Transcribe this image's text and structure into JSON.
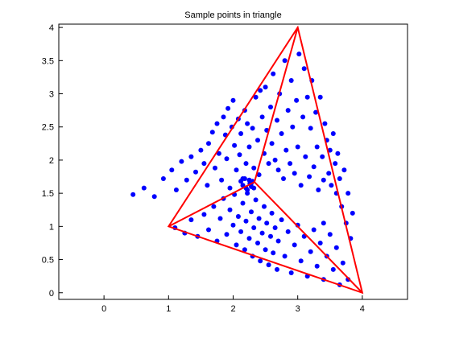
{
  "chart_data": {
    "type": "scatter",
    "title": "Sample points in triangle",
    "xlabel": "",
    "ylabel": "",
    "xlim": [
      -0.7,
      4.7
    ],
    "ylim": [
      -0.1,
      4.05
    ],
    "xticks": [
      0,
      1,
      2,
      3,
      4
    ],
    "yticks": [
      0,
      0.5,
      1,
      1.5,
      2,
      2.5,
      3,
      3.5,
      4
    ],
    "xtick_labels": [
      "0",
      "1",
      "2",
      "3",
      "4"
    ],
    "ytick_labels": [
      "0",
      "0.5",
      "1",
      "1.5",
      "2",
      "2.5",
      "3",
      "3.5",
      "4"
    ],
    "grid": false,
    "triangle": {
      "vertices": [
        [
          1,
          1
        ],
        [
          4,
          0
        ],
        [
          3,
          4
        ]
      ],
      "centroid": [
        2.33,
        1.67
      ],
      "color": "#ff0000"
    },
    "point_color": "#0000ff",
    "points": [
      [
        0.45,
        1.48
      ],
      [
        0.62,
        1.58
      ],
      [
        0.78,
        1.45
      ],
      [
        0.92,
        1.72
      ],
      [
        1.05,
        1.85
      ],
      [
        1.12,
        1.55
      ],
      [
        1.2,
        1.98
      ],
      [
        1.28,
        1.7
      ],
      [
        1.35,
        2.05
      ],
      [
        1.42,
        1.82
      ],
      [
        1.5,
        2.15
      ],
      [
        1.55,
        1.95
      ],
      [
        1.6,
        1.62
      ],
      [
        1.62,
        2.25
      ],
      [
        1.68,
        2.42
      ],
      [
        1.72,
        1.88
      ],
      [
        1.75,
        2.55
      ],
      [
        1.78,
        2.1
      ],
      [
        1.82,
        1.7
      ],
      [
        1.85,
        2.65
      ],
      [
        1.88,
        2.38
      ],
      [
        1.9,
        2.02
      ],
      [
        1.92,
        2.78
      ],
      [
        1.95,
        1.58
      ],
      [
        1.98,
        2.5
      ],
      [
        2.0,
        2.9
      ],
      [
        2.02,
        2.22
      ],
      [
        2.05,
        1.85
      ],
      [
        2.08,
        2.62
      ],
      [
        2.1,
        2.08
      ],
      [
        2.12,
        2.4
      ],
      [
        2.15,
        1.72
      ],
      [
        2.18,
        2.75
      ],
      [
        2.2,
        1.95
      ],
      [
        2.22,
        2.55
      ],
      [
        2.25,
        2.2
      ],
      [
        2.28,
        1.65
      ],
      [
        2.3,
        2.48
      ],
      [
        2.32,
        1.88
      ],
      [
        2.35,
        2.95
      ],
      [
        2.38,
        2.3
      ],
      [
        2.4,
        1.78
      ],
      [
        2.42,
        3.05
      ],
      [
        2.45,
        2.65
      ],
      [
        2.48,
        2.1
      ],
      [
        2.5,
        3.1
      ],
      [
        2.52,
        2.45
      ],
      [
        2.55,
        1.95
      ],
      [
        2.58,
        2.8
      ],
      [
        2.6,
        2.25
      ],
      [
        2.62,
        3.3
      ],
      [
        2.65,
        2.0
      ],
      [
        2.68,
        2.6
      ],
      [
        2.7,
        1.85
      ],
      [
        2.72,
        3.0
      ],
      [
        2.75,
        2.4
      ],
      [
        2.78,
        1.72
      ],
      [
        2.8,
        3.5
      ],
      [
        2.82,
        2.15
      ],
      [
        2.85,
        2.75
      ],
      [
        2.88,
        1.95
      ],
      [
        2.9,
        3.2
      ],
      [
        2.92,
        2.5
      ],
      [
        2.95,
        1.8
      ],
      [
        2.98,
        2.9
      ],
      [
        3.0,
        2.2
      ],
      [
        3.02,
        3.6
      ],
      [
        3.05,
        1.62
      ],
      [
        3.08,
        2.65
      ],
      [
        3.1,
        3.38
      ],
      [
        3.12,
        2.05
      ],
      [
        3.15,
        2.95
      ],
      [
        3.18,
        1.75
      ],
      [
        3.2,
        2.48
      ],
      [
        3.22,
        3.2
      ],
      [
        3.25,
        1.9
      ],
      [
        3.28,
        2.72
      ],
      [
        3.3,
        2.2
      ],
      [
        3.32,
        1.55
      ],
      [
        3.35,
        2.95
      ],
      [
        3.38,
        2.05
      ],
      [
        3.4,
        1.7
      ],
      [
        3.42,
        2.55
      ],
      [
        3.45,
        2.3
      ],
      [
        3.48,
        1.8
      ],
      [
        3.5,
        2.15
      ],
      [
        3.52,
        1.62
      ],
      [
        3.55,
        2.4
      ],
      [
        3.58,
        1.95
      ],
      [
        3.6,
        1.5
      ],
      [
        3.62,
        2.1
      ],
      [
        3.65,
        1.72
      ],
      [
        3.68,
        1.3
      ],
      [
        3.72,
        1.85
      ],
      [
        3.75,
        1.05
      ],
      [
        3.78,
        1.5
      ],
      [
        3.82,
        0.82
      ],
      [
        3.85,
        1.2
      ],
      [
        3.7,
        0.45
      ],
      [
        3.78,
        0.2
      ],
      [
        1.1,
        0.98
      ],
      [
        1.25,
        0.9
      ],
      [
        1.35,
        1.1
      ],
      [
        1.45,
        0.85
      ],
      [
        1.55,
        1.18
      ],
      [
        1.62,
        0.95
      ],
      [
        1.7,
        1.3
      ],
      [
        1.75,
        0.78
      ],
      [
        1.8,
        1.12
      ],
      [
        1.85,
        1.42
      ],
      [
        1.9,
        0.88
      ],
      [
        1.95,
        1.25
      ],
      [
        2.0,
        1.02
      ],
      [
        2.02,
        1.48
      ],
      [
        2.05,
        0.72
      ],
      [
        2.08,
        1.15
      ],
      [
        2.12,
        0.92
      ],
      [
        2.15,
        1.35
      ],
      [
        2.18,
        0.65
      ],
      [
        2.2,
        1.08
      ],
      [
        2.22,
        1.5
      ],
      [
        2.25,
        0.82
      ],
      [
        2.28,
        1.22
      ],
      [
        2.3,
        0.55
      ],
      [
        2.32,
        0.98
      ],
      [
        2.35,
        1.4
      ],
      [
        2.38,
        0.75
      ],
      [
        2.4,
        1.12
      ],
      [
        2.42,
        0.48
      ],
      [
        2.45,
        0.9
      ],
      [
        2.48,
        1.3
      ],
      [
        2.5,
        0.65
      ],
      [
        2.52,
        1.05
      ],
      [
        2.55,
        0.42
      ],
      [
        2.58,
        0.85
      ],
      [
        2.6,
        1.2
      ],
      [
        2.62,
        0.6
      ],
      [
        2.65,
        0.98
      ],
      [
        2.68,
        0.35
      ],
      [
        2.7,
        0.78
      ],
      [
        2.75,
        1.1
      ],
      [
        2.8,
        0.55
      ],
      [
        2.85,
        0.92
      ],
      [
        2.9,
        0.3
      ],
      [
        2.95,
        0.72
      ],
      [
        3.0,
        1.02
      ],
      [
        3.05,
        0.48
      ],
      [
        3.1,
        0.85
      ],
      [
        3.15,
        0.25
      ],
      [
        3.2,
        0.62
      ],
      [
        3.25,
        0.95
      ],
      [
        3.3,
        0.4
      ],
      [
        3.35,
        0.75
      ],
      [
        3.4,
        0.2
      ],
      [
        3.45,
        0.55
      ],
      [
        3.5,
        0.88
      ],
      [
        3.55,
        0.35
      ],
      [
        3.6,
        0.68
      ],
      [
        3.65,
        0.12
      ],
      [
        3.4,
        1.05
      ],
      [
        2.15,
        1.62
      ],
      [
        2.2,
        1.58
      ],
      [
        2.25,
        1.7
      ],
      [
        2.28,
        1.6
      ],
      [
        2.3,
        1.68
      ],
      [
        2.18,
        1.72
      ],
      [
        2.22,
        1.55
      ],
      [
        2.26,
        1.65
      ],
      [
        2.32,
        1.58
      ],
      [
        2.12,
        1.68
      ]
    ]
  }
}
